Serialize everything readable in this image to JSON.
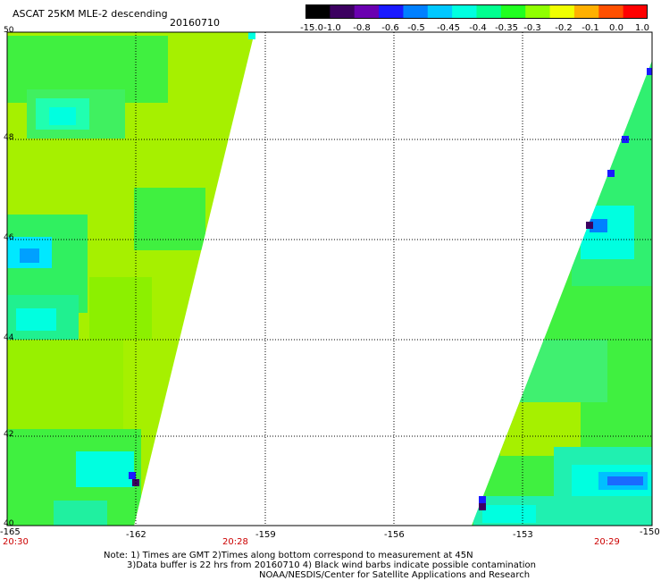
{
  "header": {
    "title": "ASCAT 25KM MLE-2 descending",
    "date": "20160710"
  },
  "colorbar": {
    "labels": [
      "-15.0",
      "-1.0",
      "-0.8",
      "-0.6",
      "-0.5",
      "-0.45",
      "-0.4",
      "-0.35",
      "-0.3",
      "-0.2",
      "-0.1",
      "0.0",
      "1.0"
    ],
    "colors": [
      "#000000",
      "#3c0060",
      "#6a00b0",
      "#1a1aff",
      "#0080ff",
      "#00c8ff",
      "#00ffe0",
      "#00ff90",
      "#20ff20",
      "#90ff00",
      "#f0ff00",
      "#ffb000",
      "#ff5000",
      "#ff0000"
    ]
  },
  "map": {
    "lat_labels": [
      "50",
      "48",
      "46",
      "44",
      "42",
      "40"
    ],
    "lon_labels": [
      "-165",
      "-162",
      "-159",
      "-156",
      "-153",
      "-150"
    ],
    "time_labels": [
      "20:30",
      "20:28",
      "20:29"
    ]
  },
  "notes": {
    "line1": "Note: 1) Times are GMT 2)Times along bottom correspond to measurement at 45N",
    "line2": "3)Data buffer is 22 hrs from 20160710 4) Black wind barbs indicate possible contamination",
    "line3": "NOAA/NESDIS/Center for Satellite Applications and Research"
  }
}
